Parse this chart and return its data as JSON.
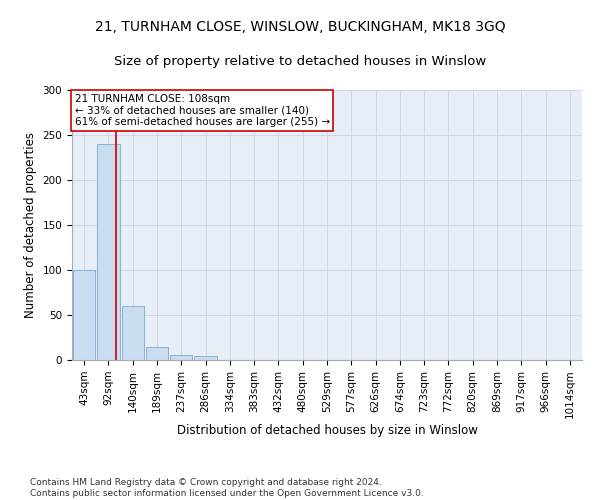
{
  "title": "21, TURNHAM CLOSE, WINSLOW, BUCKINGHAM, MK18 3GQ",
  "subtitle": "Size of property relative to detached houses in Winslow",
  "xlabel": "Distribution of detached houses by size in Winslow",
  "ylabel": "Number of detached properties",
  "bar_labels": [
    "43sqm",
    "92sqm",
    "140sqm",
    "189sqm",
    "237sqm",
    "286sqm",
    "334sqm",
    "383sqm",
    "432sqm",
    "480sqm",
    "529sqm",
    "577sqm",
    "626sqm",
    "674sqm",
    "723sqm",
    "772sqm",
    "820sqm",
    "869sqm",
    "917sqm",
    "966sqm",
    "1014sqm"
  ],
  "bar_values": [
    100,
    240,
    60,
    15,
    6,
    4,
    0,
    0,
    0,
    0,
    0,
    0,
    0,
    0,
    0,
    0,
    0,
    0,
    0,
    0,
    0
  ],
  "bar_color": "#c9dcf0",
  "bar_edge_color": "#7aaad0",
  "red_line_x": 1.33,
  "annotation_text": "21 TURNHAM CLOSE: 108sqm\n← 33% of detached houses are smaller (140)\n61% of semi-detached houses are larger (255) →",
  "annotation_box_color": "#ffffff",
  "annotation_edge_color": "#cc0000",
  "ylim": [
    0,
    300
  ],
  "yticks": [
    0,
    50,
    100,
    150,
    200,
    250,
    300
  ],
  "footnote": "Contains HM Land Registry data © Crown copyright and database right 2024.\nContains public sector information licensed under the Open Government Licence v3.0.",
  "title_fontsize": 10,
  "subtitle_fontsize": 9.5,
  "xlabel_fontsize": 8.5,
  "ylabel_fontsize": 8.5,
  "tick_fontsize": 7.5,
  "annotation_fontsize": 7.5,
  "footnote_fontsize": 6.5,
  "grid_color": "#cdd8ec",
  "background_color": "#e8eef8"
}
